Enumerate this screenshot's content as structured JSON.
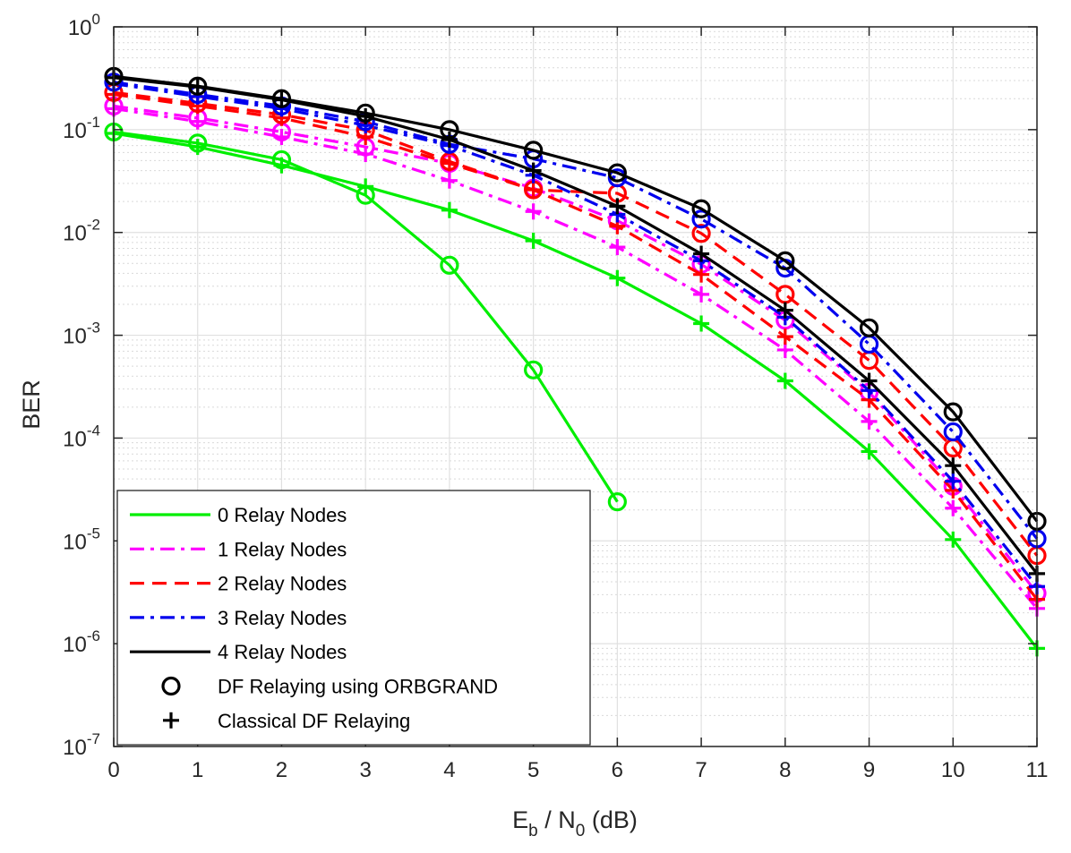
{
  "chart_data": {
    "type": "line",
    "title": "",
    "xlabel": {
      "main": "E",
      "sub1": "b",
      "mid": " / N",
      "sub2": "0",
      "tail": " (dB)"
    },
    "ylabel": "BER",
    "xlim": [
      0,
      11
    ],
    "ylim": [
      1e-07,
      1
    ],
    "yscale": "log",
    "grid": true,
    "x_ticks": [
      "0",
      "1",
      "2",
      "3",
      "4",
      "5",
      "6",
      "7",
      "8",
      "9",
      "10",
      "11"
    ],
    "y_ticks": [
      {
        "base": "10",
        "exp": "0"
      },
      {
        "base": "10",
        "exp": "-1"
      },
      {
        "base": "10",
        "exp": "-2"
      },
      {
        "base": "10",
        "exp": "-3"
      },
      {
        "base": "10",
        "exp": "-4"
      },
      {
        "base": "10",
        "exp": "-5"
      },
      {
        "base": "10",
        "exp": "-6"
      },
      {
        "base": "10",
        "exp": "-7"
      }
    ],
    "series": [
      {
        "name": "0 Relay Nodes",
        "color": "#00ee00",
        "dash": "solid",
        "orbgrand": {
          "x": [
            0,
            1,
            2,
            3,
            4,
            5,
            6
          ],
          "y": [
            0.095,
            0.074,
            0.051,
            0.023,
            0.0048,
            0.00046,
            2.4e-05
          ]
        },
        "classical": {
          "x": [
            0,
            1,
            2,
            3,
            4,
            5,
            6,
            7,
            8,
            9,
            10,
            11
          ],
          "y": [
            0.092,
            0.068,
            0.045,
            0.028,
            0.0165,
            0.0083,
            0.0036,
            0.0013,
            0.00036,
            7.4e-05,
            1.03e-05,
            9e-07
          ]
        }
      },
      {
        "name": "1 Relay Nodes",
        "color": "#ff00ff",
        "dash": "dashdot",
        "orbgrand": {
          "x": [
            0,
            1,
            2,
            3,
            4,
            5,
            6,
            7,
            8,
            9,
            10,
            11
          ],
          "y": [
            0.17,
            0.13,
            0.095,
            0.068,
            0.047,
            0.027,
            0.013,
            0.0049,
            0.0014,
            0.00028,
            3.4e-05,
            3.1e-06
          ]
        },
        "classical": {
          "x": [
            0,
            1,
            2,
            3,
            4,
            5,
            6,
            7,
            8,
            9,
            10,
            11
          ],
          "y": [
            0.16,
            0.12,
            0.085,
            0.058,
            0.032,
            0.016,
            0.0072,
            0.0025,
            0.00072,
            0.000145,
            2.08e-05,
            2.2e-06
          ]
        }
      },
      {
        "name": "2 Relay Nodes",
        "color": "#ff0000",
        "dash": "dashed",
        "orbgrand": {
          "x": [
            0,
            1,
            2,
            3,
            4,
            5,
            6,
            7,
            8,
            9,
            10,
            11
          ],
          "y": [
            0.23,
            0.18,
            0.14,
            0.099,
            0.049,
            0.026,
            0.024,
            0.0098,
            0.0025,
            0.00057,
            8e-05,
            7.2e-06
          ]
        },
        "classical": {
          "x": [
            0,
            1,
            2,
            3,
            4,
            5,
            6,
            7,
            8,
            9,
            10,
            11
          ],
          "y": [
            0.22,
            0.17,
            0.13,
            0.085,
            0.047,
            0.026,
            0.0115,
            0.0039,
            0.00097,
            0.000236,
            3.1e-05,
            2.7e-06
          ]
        }
      },
      {
        "name": "3 Relay Nodes",
        "color": "#0000ee",
        "dash": "dashdot",
        "orbgrand": {
          "x": [
            0,
            1,
            2,
            3,
            4,
            5,
            6,
            7,
            8,
            9,
            10,
            11
          ],
          "y": [
            0.29,
            0.22,
            0.17,
            0.12,
            0.072,
            0.052,
            0.034,
            0.0135,
            0.0045,
            0.00082,
            0.000115,
            1.05e-05
          ]
        },
        "classical": {
          "x": [
            0,
            1,
            2,
            3,
            4,
            5,
            6,
            7,
            8,
            9,
            10,
            11
          ],
          "y": [
            0.28,
            0.21,
            0.16,
            0.11,
            0.07,
            0.036,
            0.015,
            0.0053,
            0.0015,
            0.00029,
            3.8e-05,
            3.6e-06
          ]
        }
      },
      {
        "name": "4 Relay Nodes",
        "color": "#000000",
        "dash": "solid",
        "orbgrand": {
          "x": [
            0,
            1,
            2,
            3,
            4,
            5,
            6,
            7,
            8,
            9,
            10,
            11
          ],
          "y": [
            0.33,
            0.265,
            0.2,
            0.145,
            0.1,
            0.063,
            0.038,
            0.017,
            0.0053,
            0.00118,
            0.00018,
            1.55e-05
          ]
        },
        "classical": {
          "x": [
            0,
            1,
            2,
            3,
            4,
            5,
            6,
            7,
            8,
            9,
            10,
            11
          ],
          "y": [
            0.32,
            0.26,
            0.195,
            0.135,
            0.08,
            0.04,
            0.018,
            0.0062,
            0.00175,
            0.00036,
            5.4e-05,
            4.8e-06
          ]
        }
      }
    ],
    "legend": {
      "position": "bottom-left",
      "entries": [
        {
          "label": "0 Relay Nodes",
          "kind": "line",
          "color": "#00ee00",
          "dash": "solid"
        },
        {
          "label": "1 Relay Nodes",
          "kind": "line",
          "color": "#ff00ff",
          "dash": "dashdot"
        },
        {
          "label": "2 Relay Nodes",
          "kind": "line",
          "color": "#ff0000",
          "dash": "dashed"
        },
        {
          "label": "3 Relay Nodes",
          "kind": "line",
          "color": "#0000ee",
          "dash": "dashdot"
        },
        {
          "label": "4 Relay Nodes",
          "kind": "line",
          "color": "#000000",
          "dash": "solid"
        },
        {
          "label": "DF Relaying using ORBGRAND",
          "kind": "circle",
          "color": "#000000"
        },
        {
          "label": "Classical DF Relaying",
          "kind": "plus",
          "color": "#000000"
        }
      ]
    }
  }
}
